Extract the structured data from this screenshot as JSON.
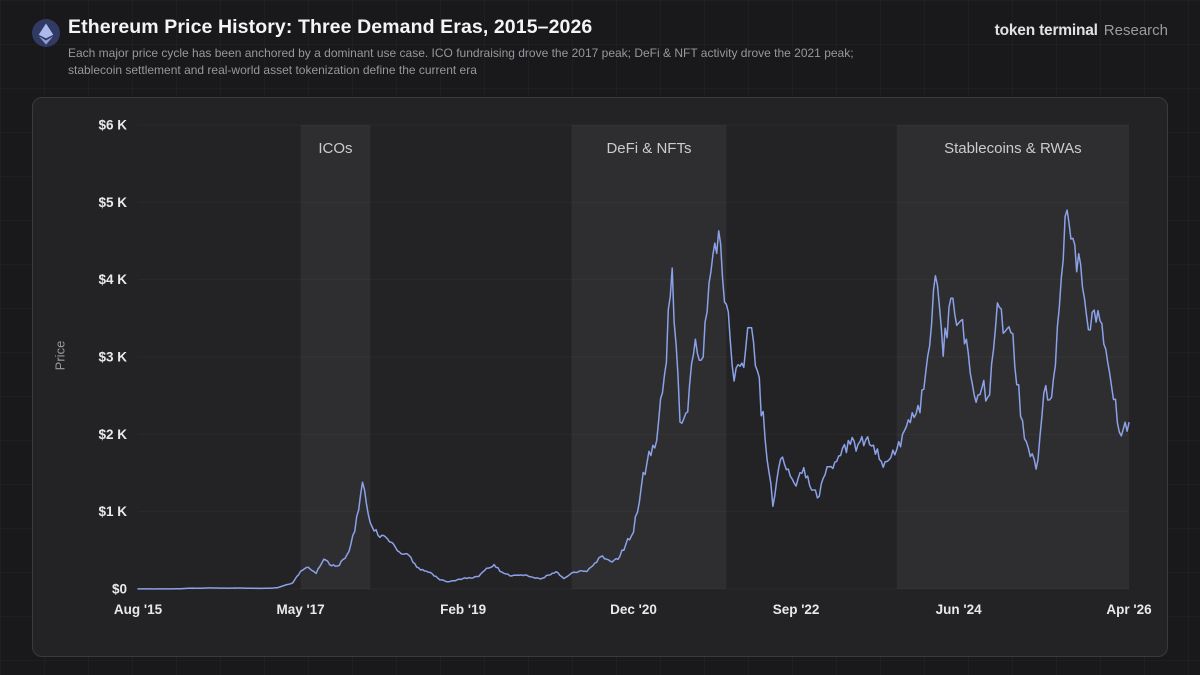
{
  "header": {
    "title": "Ethereum Price History: Three Demand Eras, 2015–2026",
    "subtitle": "Each major price cycle has been anchored by a dominant use case. ICO fundraising drove the 2017 peak; DeFi & NFT activity drove the 2021 peak; stablecoin settlement and real-world asset tokenization define the current era",
    "brand": {
      "name": "token terminal",
      "suffix": "Research"
    },
    "logo_icon": "ethereum-icon",
    "logo_colors": {
      "badge_bg": "#313a63",
      "glyph": "#b2c0f4"
    }
  },
  "chart_data": {
    "type": "line",
    "title": "Ethereum Price History: Three Demand Eras, 2015–2026",
    "xlabel": "",
    "ylabel": "Price",
    "ylim": [
      0,
      6000
    ],
    "grid": "subtle-horizontal",
    "legend_position": "none",
    "line_color": "#8ba1e8",
    "band_color": "rgba(255,255,255,0.05)",
    "x_range_months": [
      "2015-08",
      "2026-04"
    ],
    "x_ticks": [
      {
        "label": "Aug '15",
        "month": "2015-08"
      },
      {
        "label": "May '17",
        "month": "2017-05"
      },
      {
        "label": "Feb '19",
        "month": "2019-02"
      },
      {
        "label": "Dec '20",
        "month": "2020-12"
      },
      {
        "label": "Sep '22",
        "month": "2022-09"
      },
      {
        "label": "Jun '24",
        "month": "2024-06"
      },
      {
        "label": "Apr '26",
        "month": "2026-04"
      }
    ],
    "y_ticks": [
      {
        "label": "$0",
        "value": 0
      },
      {
        "label": "$1 K",
        "value": 1000
      },
      {
        "label": "$2 K",
        "value": 2000
      },
      {
        "label": "$3 K",
        "value": 3000
      },
      {
        "label": "$4 K",
        "value": 4000
      },
      {
        "label": "$5 K",
        "value": 5000
      },
      {
        "label": "$6 K",
        "value": 6000
      }
    ],
    "eras": [
      {
        "label": "ICOs",
        "start": "2017-05",
        "end": "2018-02"
      },
      {
        "label": "DeFi & NFTs",
        "start": "2020-04",
        "end": "2021-12"
      },
      {
        "label": "Stablecoins & RWAs",
        "start": "2023-10",
        "end": "2026-04"
      }
    ],
    "series": [
      {
        "name": "ETH price (USD)",
        "interval": "monthly",
        "start_month": "2015-08",
        "values": [
          1.3,
          0.9,
          0.6,
          0.9,
          0.9,
          2.3,
          6.3,
          11.2,
          8.8,
          14,
          12.6,
          11.6,
          11,
          13.1,
          10.9,
          8.6,
          8,
          10.7,
          15.6,
          50,
          80,
          230,
          280,
          200,
          385,
          300,
          305,
          445,
          745,
          1380,
          855,
          695,
          670,
          580,
          455,
          435,
          283,
          233,
          197,
          118,
          95,
          107,
          137,
          141,
          162,
          268,
          315,
          218,
          172,
          180,
          182,
          151,
          129,
          180,
          224,
          134,
          206,
          232,
          226,
          335,
          428,
          360,
          383,
          575,
          735,
          1310,
          1780,
          1920,
          2770,
          4150,
          2160,
          2290,
          3230,
          3000,
          4100,
          4630,
          3680,
          2690,
          2920,
          3380,
          2820,
          1940,
          1070,
          1680,
          1550,
          1330,
          1570,
          1280,
          1200,
          1580,
          1640,
          1820,
          1870,
          1870,
          1930,
          1860,
          1650,
          1670,
          1800,
          2050,
          2280,
          2280,
          3010,
          4050,
          3010,
          3760,
          3440,
          3230,
          2510,
          2600,
          2510,
          3700,
          3330,
          3300,
          2230,
          1820,
          1550,
          2530,
          2480,
          3640,
          4900,
          4450,
          3900,
          3350,
          3600,
          3100,
          2450,
          1980,
          2150
        ]
      }
    ]
  }
}
